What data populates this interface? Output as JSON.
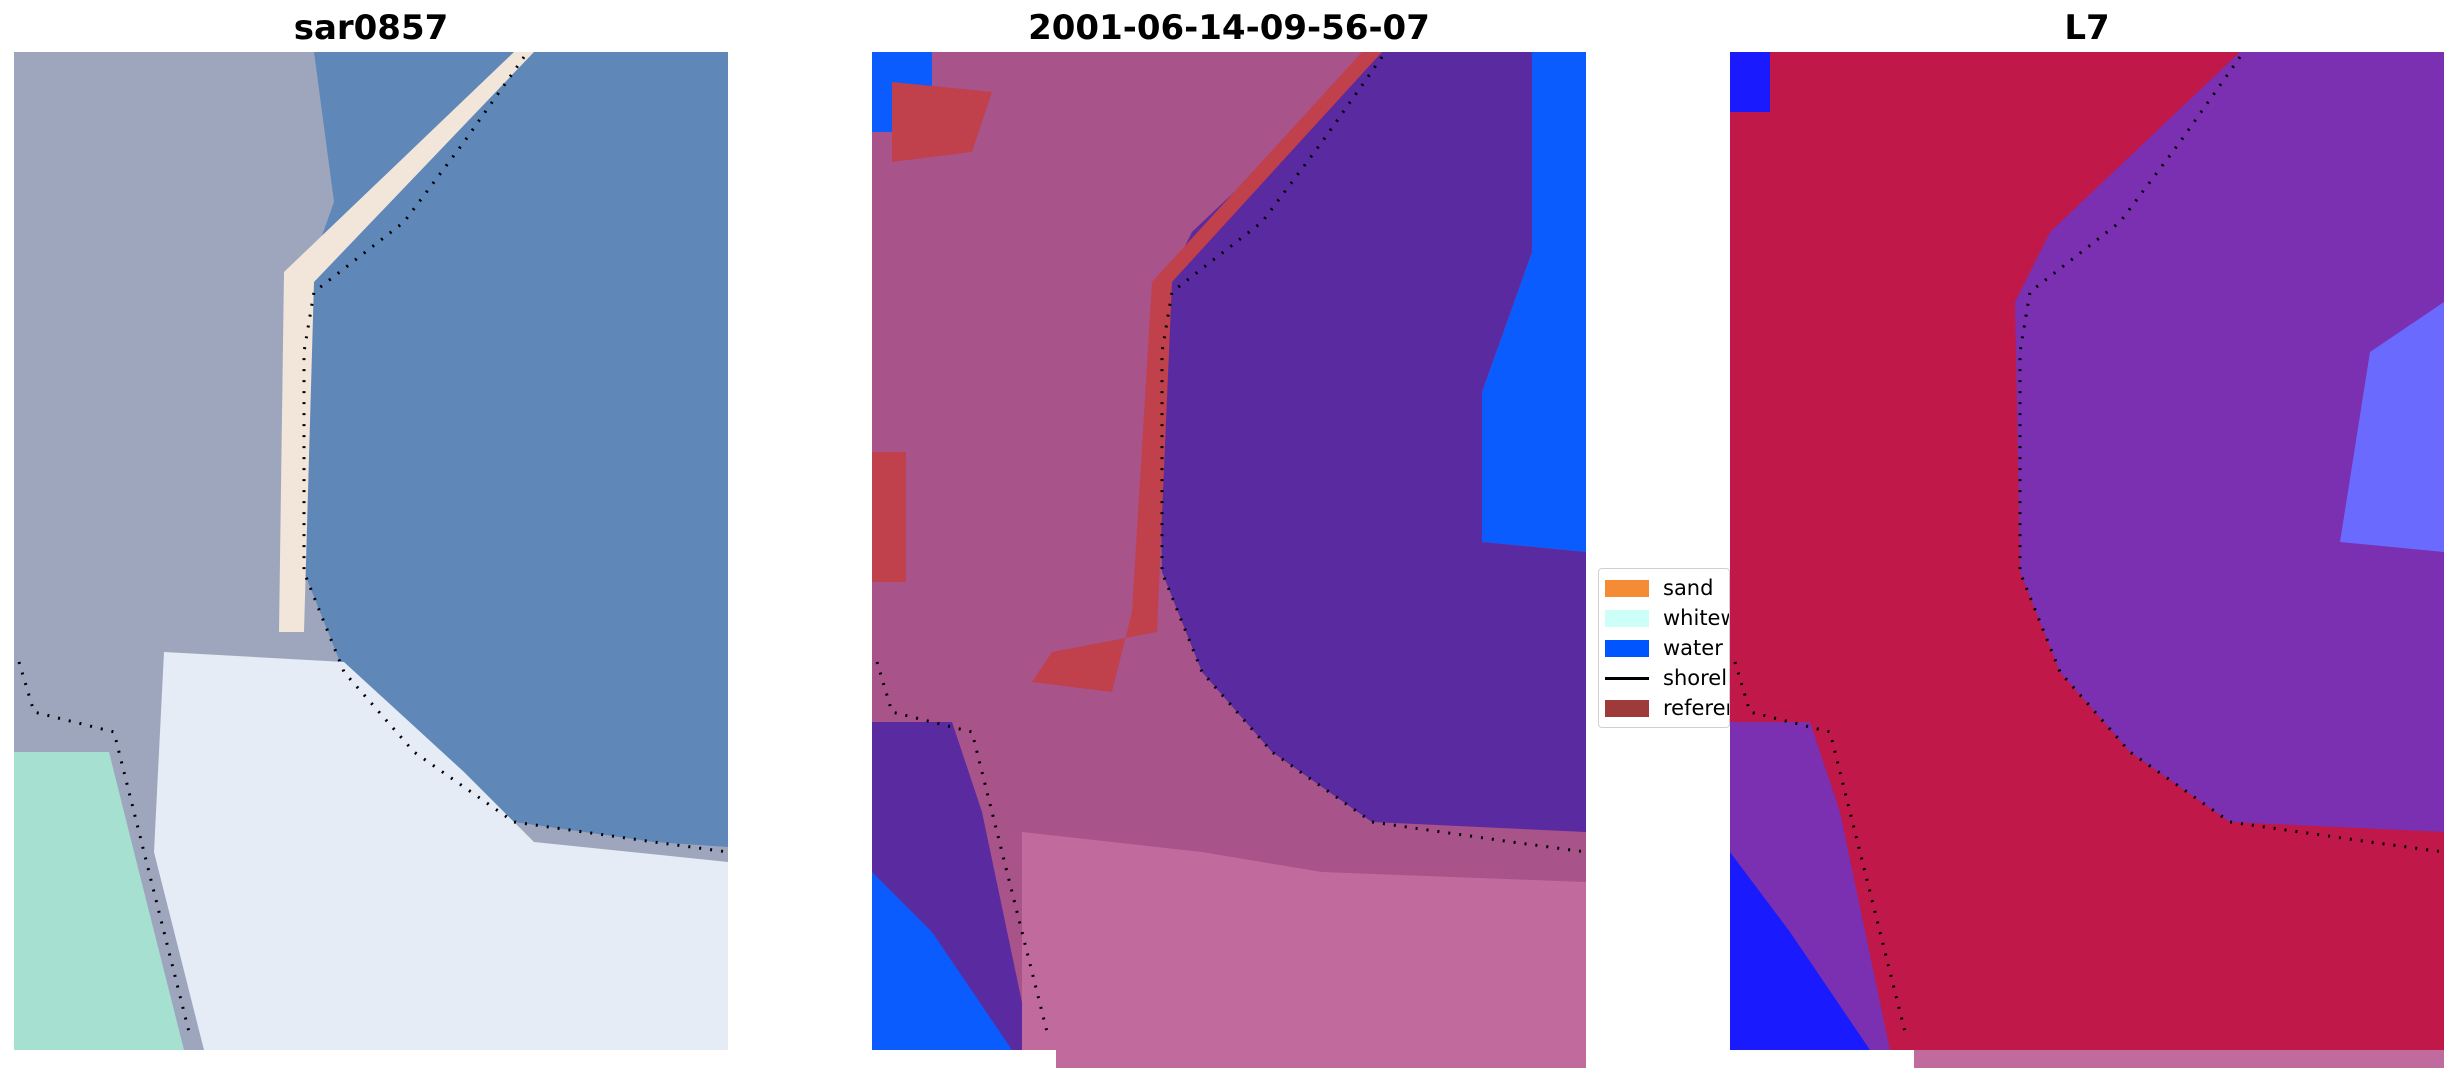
{
  "panels": [
    {
      "title": "sar0857"
    },
    {
      "title": "2001-06-14-09-56-07"
    },
    {
      "title": "L7"
    }
  ],
  "legend": {
    "items": [
      {
        "label": "sand",
        "color": "#f58b34",
        "kind": "patch"
      },
      {
        "label": "whitewater",
        "color": "#ccfff7",
        "kind": "patch"
      },
      {
        "label": "water",
        "color": "#0055ff",
        "kind": "patch"
      },
      {
        "label": "shoreline",
        "color": "#000000",
        "kind": "line"
      },
      {
        "label": "reference",
        "color": "#9e3a3a",
        "kind": "patch"
      }
    ]
  },
  "colors": {
    "rgb_water": "#5f87b8",
    "rgb_land": "#9ea6bd",
    "rgb_road": "#f2e6da",
    "rgb_whitewater": "#e6ecf5",
    "rgb_vegetation": "#a6e0d0",
    "class_land": "#a8538a",
    "class_land_pink": "#c06a9e",
    "class_water": "#5a2aa0",
    "class_water_blue": "#0a5cff",
    "class_road": "#c0404c",
    "index_land": "#c01848",
    "index_water": "#7a30b0",
    "index_blue": "#1a1aff",
    "shoreline": "#000000"
  }
}
